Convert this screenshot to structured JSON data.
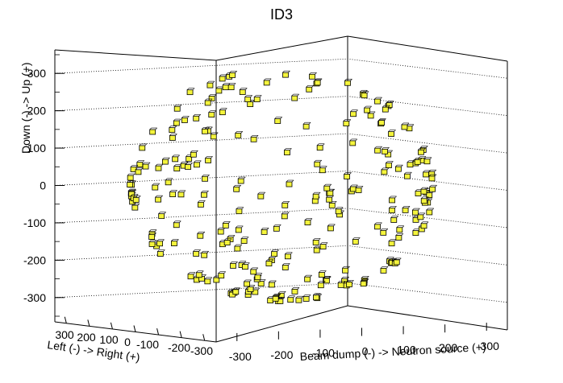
{
  "chart_data": {
    "type": "scatter",
    "title": "ID3",
    "xlabel": "Left (-) -> Right (+)",
    "zlabel": "Beam dump (-) -> Neutron source (+)",
    "ylabel": "Down (-) -> Up (+)",
    "axes": {
      "x": {
        "range": [
          -350,
          350
        ],
        "ticks": [
          -300,
          -200,
          -100,
          0,
          100,
          200,
          300
        ]
      },
      "z": {
        "range": [
          -350,
          350
        ],
        "ticks": [
          -300,
          -200,
          -100,
          0,
          100,
          200,
          300
        ]
      },
      "y": {
        "range": [
          -350,
          350
        ],
        "ticks": [
          -300,
          -200,
          -100,
          0,
          100,
          200,
          300
        ]
      }
    },
    "grid": true,
    "marker": {
      "shape": "box",
      "fill": "#f4f43c",
      "stroke": "#000000"
    },
    "detector": {
      "shape": "sphere",
      "radius": 310
    },
    "points_visible_approx": 240
  }
}
